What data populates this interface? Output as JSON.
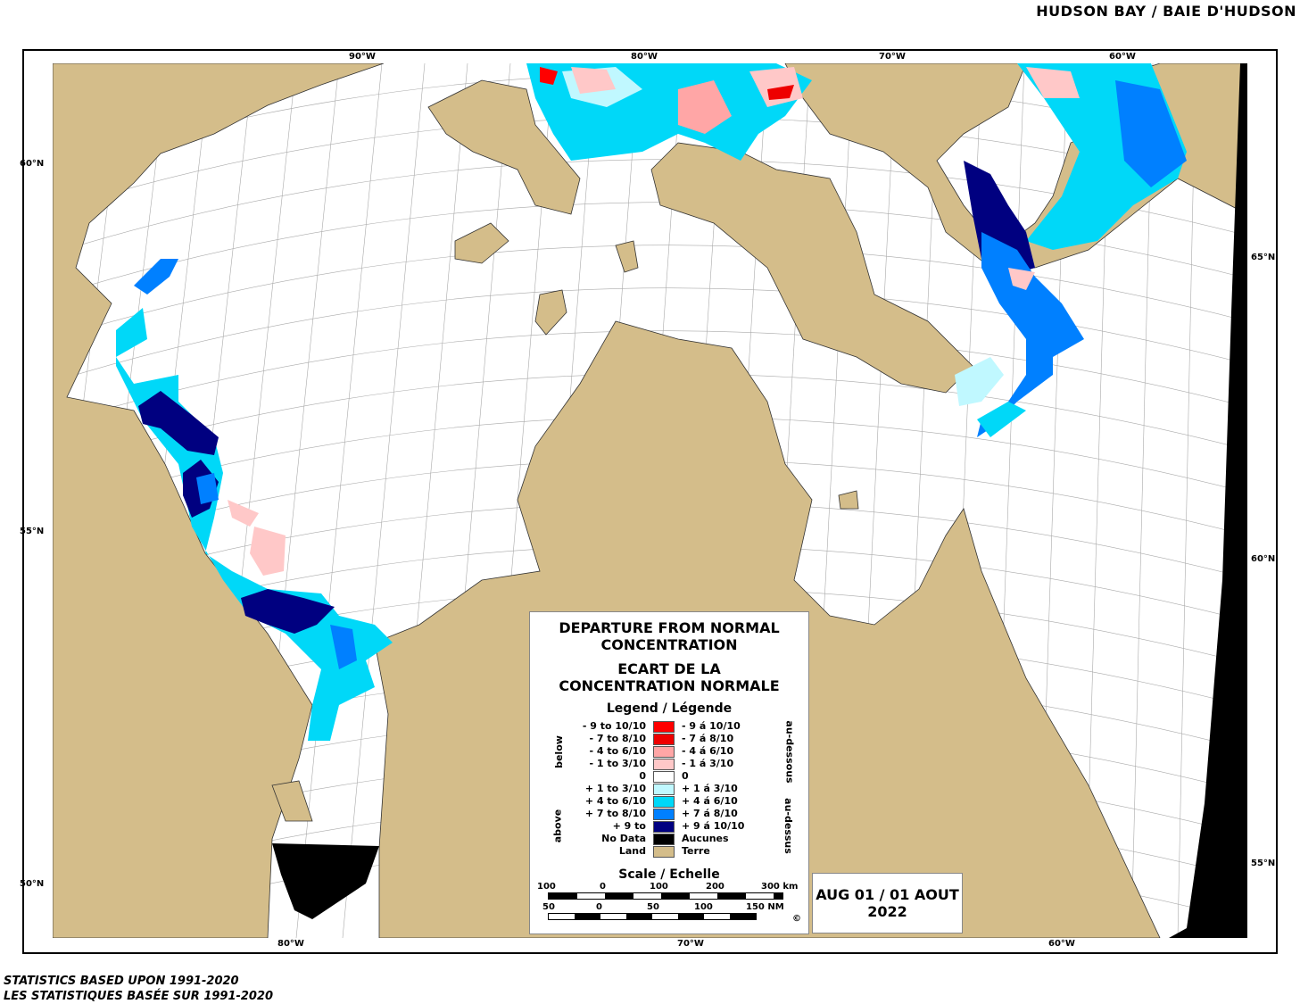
{
  "title": "HUDSON BAY / BAIE D'HUDSON",
  "axes": {
    "top": [
      "90°W",
      "80°W",
      "70°W",
      "60°W"
    ],
    "bottom": [
      "80°W",
      "70°W",
      "60°W"
    ],
    "left": [
      "60°N",
      "55°N",
      "50°N"
    ],
    "right": [
      "65°N",
      "60°N",
      "55°N"
    ]
  },
  "colors": {
    "land": "#d4bd8a",
    "water": "#ffffff",
    "no_data": "#000000",
    "grid": "#999999"
  },
  "legend": {
    "title_en": "DEPARTURE FROM NORMAL CONCENTRATION",
    "title_fr": "ECART DE LA CONCENTRATION NORMALE",
    "subtitle": "Legend / Légende",
    "below_en": "below",
    "above_en": "above",
    "below_fr": "au-dessous",
    "above_fr": "au-dessus",
    "items": [
      {
        "en": "- 9 to 10/10",
        "fr": "- 9 á 10/10",
        "color": "#ff0000"
      },
      {
        "en": "- 7 to 8/10",
        "fr": "- 7 á 8/10",
        "color": "#ee0000"
      },
      {
        "en": "- 4 to 6/10",
        "fr": "- 4 á 6/10",
        "color": "#ffa6a6"
      },
      {
        "en": "- 1 to 3/10",
        "fr": "- 1 á 3/10",
        "color": "#ffc8c8"
      },
      {
        "en": "0",
        "fr": "0",
        "color": "#ffffff"
      },
      {
        "en": "+ 1 to 3/10",
        "fr": "+ 1 á 3/10",
        "color": "#c0f8ff"
      },
      {
        "en": "+ 4 to 6/10",
        "fr": "+ 4 á 6/10",
        "color": "#00d8f8"
      },
      {
        "en": "+ 7 to 8/10",
        "fr": "+ 7 á 8/10",
        "color": "#0080ff"
      },
      {
        "en": "+ 9 to",
        "fr": "+ 9 á 10/10",
        "color": "#000080"
      },
      {
        "en": "No Data",
        "fr": "Aucunes",
        "color": "#000000"
      },
      {
        "en": "Land",
        "fr": "Terre",
        "color": "#d4bd8a"
      }
    ],
    "scale_title": "Scale / Echelle",
    "scale_km": [
      "100",
      "0",
      "100",
      "200",
      "300 km"
    ],
    "scale_nm": [
      "50",
      "0",
      "50",
      "100",
      "150 NM"
    ],
    "copyright": "©"
  },
  "date": {
    "line1": "AUG 01 / 01 AOUT",
    "line2": "2022"
  },
  "footer": {
    "line1": "STATISTICS BASED UPON 1991-2020",
    "line2": "LES STATISTIQUES BASÉE SUR 1991-2020"
  }
}
